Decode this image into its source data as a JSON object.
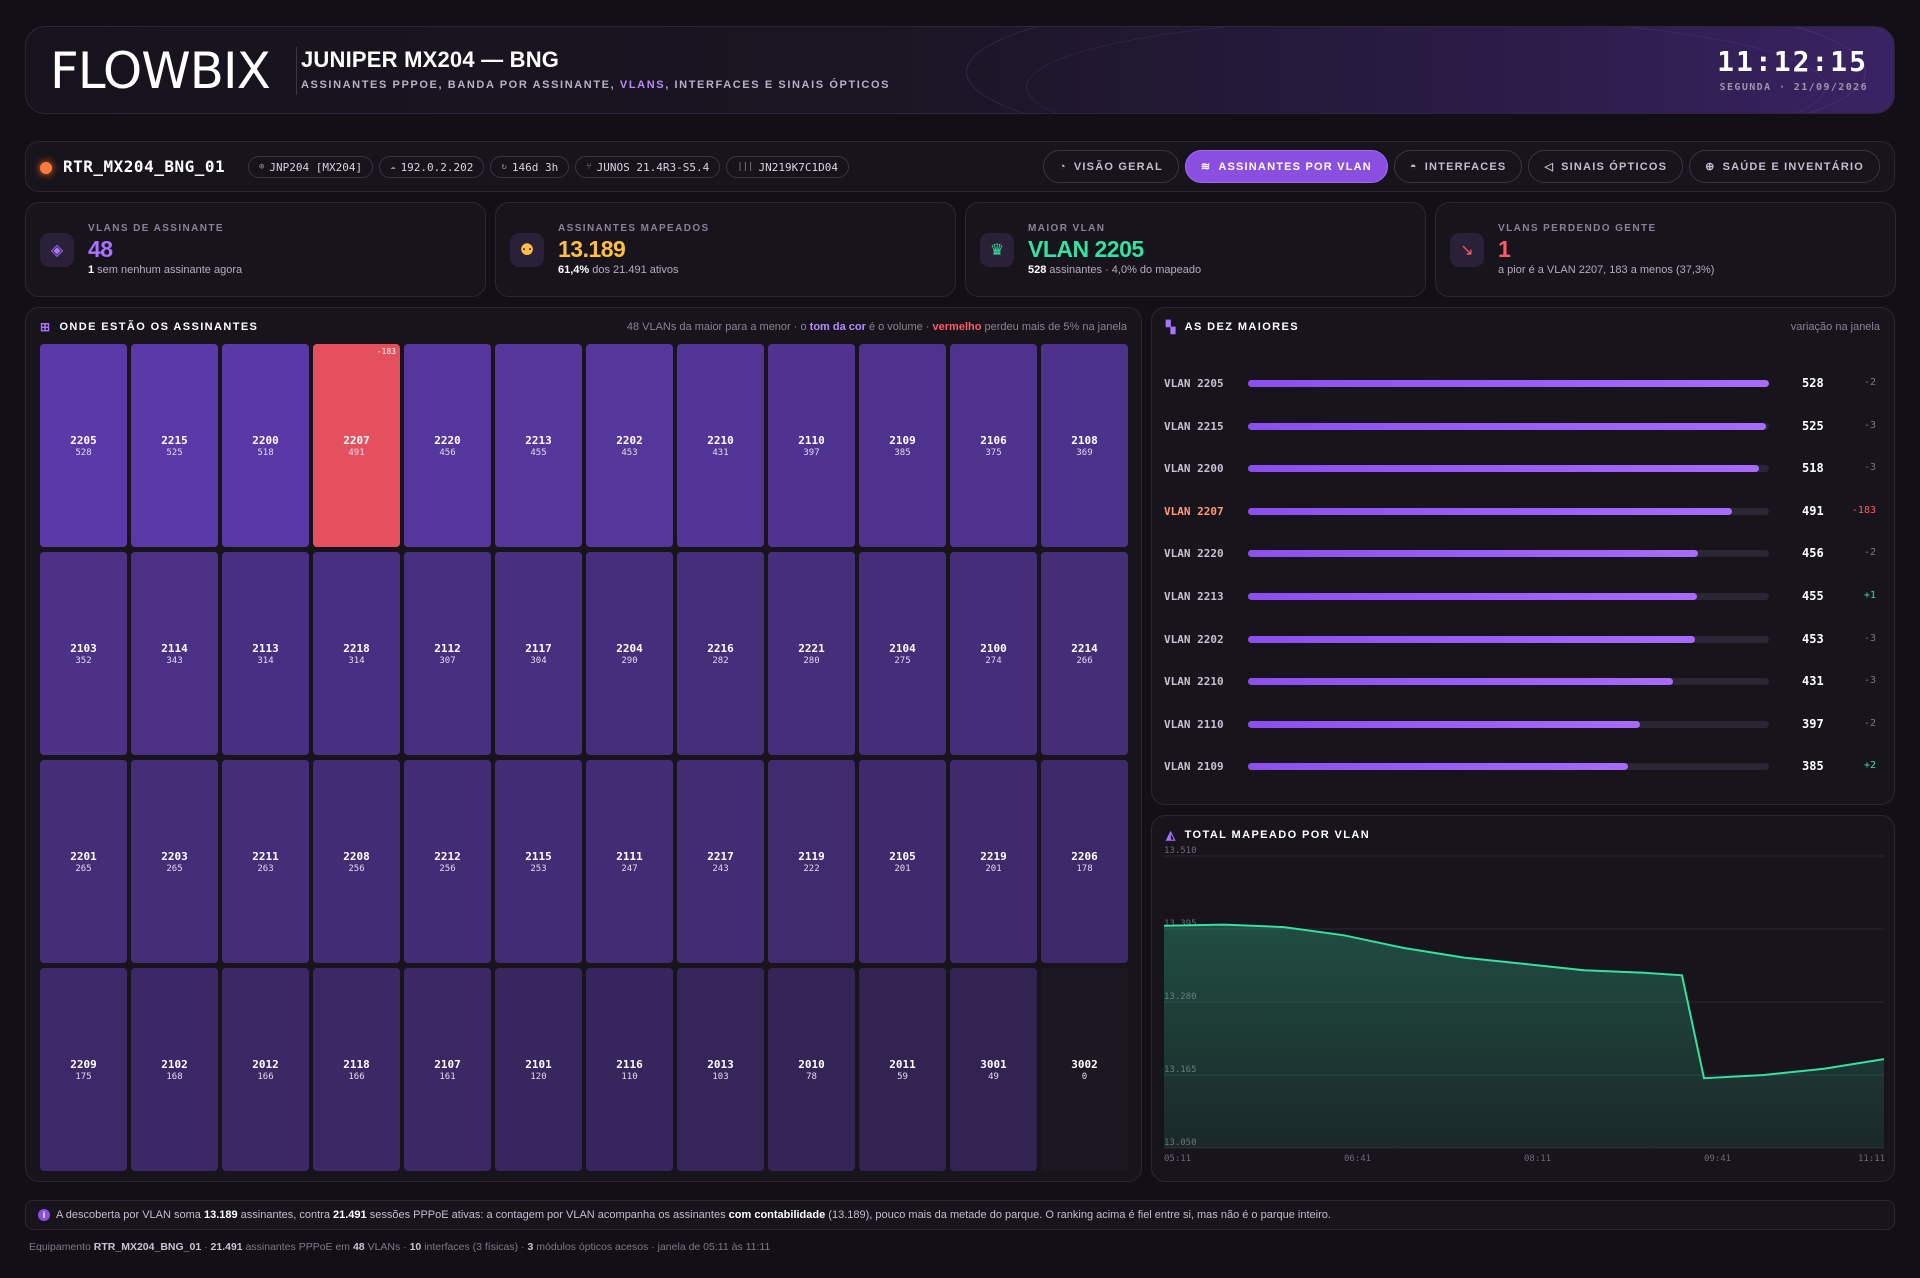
{
  "header": {
    "logo": "FLOWBIX",
    "title": "JUNIPER MX204 — BNG",
    "subtitle_a": "ASSINANTES PPPOE, BANDA POR ASSINANTE, ",
    "subtitle_hl": "VLANS",
    "subtitle_b": ", INTERFACES E SINAIS ÓPTICOS",
    "clock": "11:12:15",
    "date": "SEGUNDA · 21/09/2026"
  },
  "device": {
    "name": "RTR_MX204_BNG_01",
    "chips": [
      {
        "icon": "⊕",
        "label": "JNP204 [MX204]"
      },
      {
        "icon": "☁",
        "label": "192.0.2.202"
      },
      {
        "icon": "↻",
        "label": "146d 3h"
      },
      {
        "icon": "⑂",
        "label": "JUNOS 21.4R3-S5.4"
      },
      {
        "icon": "|||",
        "label": "JN219K7C1D04"
      }
    ],
    "tabs": [
      {
        "icon": "◔",
        "label": "VISÃO GERAL"
      },
      {
        "icon": "≋",
        "label": "ASSINANTES POR VLAN",
        "active": true
      },
      {
        "icon": "◓",
        "label": "INTERFACES"
      },
      {
        "icon": "◁",
        "label": "SINAIS ÓPTICOS"
      },
      {
        "icon": "⊕",
        "label": "SAÚDE E INVENTÁRIO"
      }
    ]
  },
  "kpis": [
    {
      "label": "VLANS DE ASSINANTE",
      "value": "48",
      "value_color": "#a873ff",
      "sub_b": "1",
      "sub": " sem nenhum assinante agora",
      "icon": "layers-icon",
      "icon_glyph": "◈",
      "icon_color": "#a873ff"
    },
    {
      "label": "ASSINANTES MAPEADOS",
      "value": "13.189",
      "value_color": "#ffbf47",
      "sub_b": "61,4%",
      "sub": " dos 21.491 ativos",
      "icon": "users-icon",
      "icon_glyph": "⚉",
      "icon_color": "#ffbf47"
    },
    {
      "label": "MAIOR VLAN",
      "value": "VLAN 2205",
      "value_color": "#37e0a0",
      "sub_b": "528",
      "sub": " assinantes · 4,0% do mapeado",
      "icon": "crown-icon",
      "icon_glyph": "♛",
      "icon_color": "#37e0a0"
    },
    {
      "label": "VLANS PERDENDO GENTE",
      "value": "1",
      "value_color": "#ff5a6a",
      "sub_b": "",
      "sub": "a pior é a VLAN 2207, 183 a menos (37,3%)",
      "icon": "trend-down-icon",
      "icon_glyph": "↘",
      "icon_color": "#ff5a6a"
    }
  ],
  "heatmap": {
    "title": "ONDE ESTÃO OS ASSINANTES",
    "note_a": "48 VLANs da maior para a menor · o ",
    "note_hl": "tom da cor",
    "note_b": " é o volume · ",
    "note_red": "vermelho",
    "note_c": " perdeu mais de 5% na janela",
    "cells": [
      {
        "vlan": "2205",
        "n": 528
      },
      {
        "vlan": "2215",
        "n": 525
      },
      {
        "vlan": "2200",
        "n": 518
      },
      {
        "vlan": "2207",
        "n": 491,
        "lost": true,
        "delta": "-183"
      },
      {
        "vlan": "2220",
        "n": 456
      },
      {
        "vlan": "2213",
        "n": 455
      },
      {
        "vlan": "2202",
        "n": 453
      },
      {
        "vlan": "2210",
        "n": 431
      },
      {
        "vlan": "2110",
        "n": 397
      },
      {
        "vlan": "2109",
        "n": 385
      },
      {
        "vlan": "2106",
        "n": 375
      },
      {
        "vlan": "2108",
        "n": 369
      },
      {
        "vlan": "2103",
        "n": 352
      },
      {
        "vlan": "2114",
        "n": 343
      },
      {
        "vlan": "2113",
        "n": 314
      },
      {
        "vlan": "2218",
        "n": 314
      },
      {
        "vlan": "2112",
        "n": 307
      },
      {
        "vlan": "2117",
        "n": 304
      },
      {
        "vlan": "2204",
        "n": 290
      },
      {
        "vlan": "2216",
        "n": 282
      },
      {
        "vlan": "2221",
        "n": 280
      },
      {
        "vlan": "2104",
        "n": 275
      },
      {
        "vlan": "2100",
        "n": 274
      },
      {
        "vlan": "2214",
        "n": 266
      },
      {
        "vlan": "2201",
        "n": 265
      },
      {
        "vlan": "2203",
        "n": 265
      },
      {
        "vlan": "2211",
        "n": 263
      },
      {
        "vlan": "2208",
        "n": 256
      },
      {
        "vlan": "2212",
        "n": 256
      },
      {
        "vlan": "2115",
        "n": 253
      },
      {
        "vlan": "2111",
        "n": 247
      },
      {
        "vlan": "2217",
        "n": 243
      },
      {
        "vlan": "2119",
        "n": 222
      },
      {
        "vlan": "2105",
        "n": 201
      },
      {
        "vlan": "2219",
        "n": 201
      },
      {
        "vlan": "2206",
        "n": 178
      },
      {
        "vlan": "2209",
        "n": 175
      },
      {
        "vlan": "2102",
        "n": 168
      },
      {
        "vlan": "2012",
        "n": 166
      },
      {
        "vlan": "2118",
        "n": 166
      },
      {
        "vlan": "2107",
        "n": 161
      },
      {
        "vlan": "2101",
        "n": 120
      },
      {
        "vlan": "2116",
        "n": 110
      },
      {
        "vlan": "2013",
        "n": 103
      },
      {
        "vlan": "2010",
        "n": 78
      },
      {
        "vlan": "2011",
        "n": 59
      },
      {
        "vlan": "3001",
        "n": 49
      },
      {
        "vlan": "3002",
        "n": 0
      }
    ]
  },
  "top_ten": {
    "title": "AS DEZ MAIORES",
    "note": "variação na janela",
    "max": 528,
    "rows": [
      {
        "label": "VLAN 2205",
        "n": 528,
        "delta": "-2"
      },
      {
        "label": "VLAN 2215",
        "n": 525,
        "delta": "-3"
      },
      {
        "label": "VLAN 2200",
        "n": 518,
        "delta": "-3"
      },
      {
        "label": "VLAN 2207",
        "n": 491,
        "delta": "-183",
        "alert": true
      },
      {
        "label": "VLAN 2220",
        "n": 456,
        "delta": "-2"
      },
      {
        "label": "VLAN 2213",
        "n": 455,
        "delta": "+1",
        "up": true
      },
      {
        "label": "VLAN 2202",
        "n": 453,
        "delta": "-3"
      },
      {
        "label": "VLAN 2210",
        "n": 431,
        "delta": "-3"
      },
      {
        "label": "VLAN 2110",
        "n": 397,
        "delta": "-2"
      },
      {
        "label": "VLAN 2109",
        "n": 385,
        "delta": "+2",
        "up": true
      }
    ]
  },
  "chart_data": {
    "type": "area",
    "title": "TOTAL MAPEADO POR VLAN",
    "y_ticks": [
      "13.510",
      "13.395",
      "13.280",
      "13.165",
      "13.050"
    ],
    "ylim": [
      13050,
      13510
    ],
    "x_ticks": [
      "05:11",
      "06:41",
      "08:11",
      "09:41",
      "11:11"
    ],
    "x": [
      "05:11",
      "05:41",
      "06:11",
      "06:41",
      "07:11",
      "07:41",
      "08:11",
      "08:41",
      "09:11",
      "09:30",
      "09:41",
      "10:11",
      "10:41",
      "11:11"
    ],
    "values": [
      13400,
      13402,
      13398,
      13385,
      13365,
      13350,
      13340,
      13330,
      13326,
      13322,
      13160,
      13165,
      13175,
      13190
    ],
    "color": "#37e0a0",
    "grid": true
  },
  "info": {
    "a": "A descoberta por VLAN soma ",
    "b1": "13.189",
    "b": " assinantes, contra ",
    "b2": "21.491",
    "c": " sessões PPPoE ativas: a contagem por VLAN acompanha os assinantes ",
    "b3": "com contabilidade",
    "d": " (13.189), pouco mais da metade do parque. O ranking acima é fiel entre si, mas não é o parque inteiro."
  },
  "footer": {
    "a": "Equipamento ",
    "b1": "RTR_MX204_BNG_01",
    "b": " · ",
    "b2": "21.491",
    "c": " assinantes PPPoE em ",
    "b3": "48",
    "d": " VLANs · ",
    "b4": "10",
    "e": " interfaces (3 físicas) · ",
    "b5": "3",
    "f": " módulos ópticos acesos · janela de 05:11 às 11:11"
  }
}
